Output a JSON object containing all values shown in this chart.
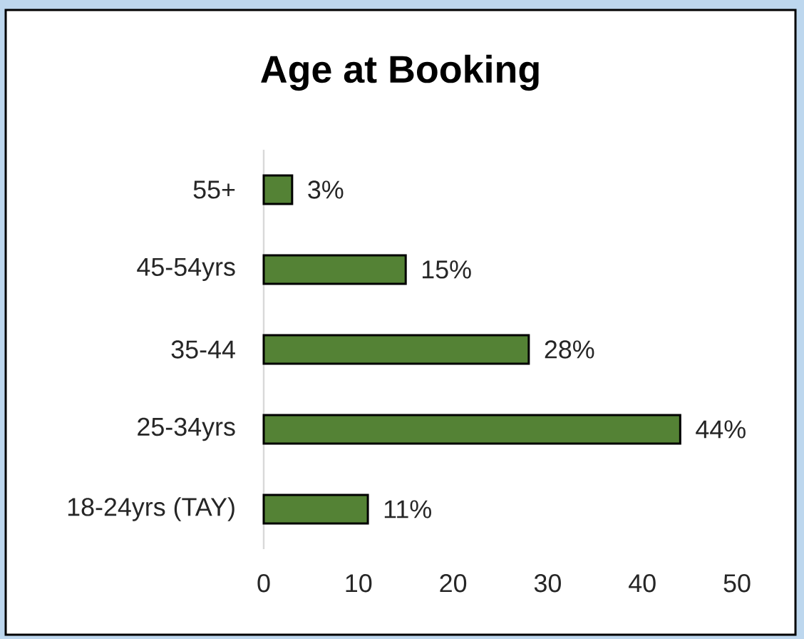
{
  "chart_data": {
    "type": "bar",
    "orientation": "horizontal",
    "title": "Age at Booking",
    "categories": [
      "55+",
      "45-54yrs",
      "35-44",
      "25-34yrs",
      "18-24yrs (TAY)"
    ],
    "values": [
      3,
      15,
      28,
      44,
      11
    ],
    "value_labels": [
      "3%",
      "15%",
      "28%",
      "44%",
      "11%"
    ],
    "color": "#548235",
    "xlim": [
      0,
      50
    ],
    "xticks": [
      0,
      10,
      20,
      30,
      40,
      50
    ]
  }
}
